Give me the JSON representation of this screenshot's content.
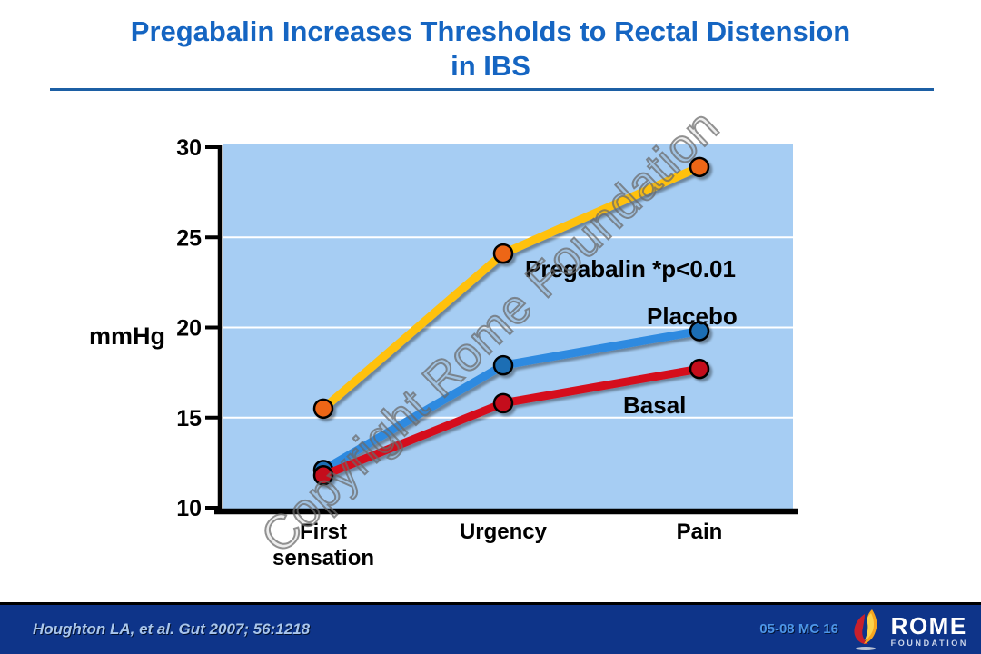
{
  "slide": {
    "title": "Pregabalin Increases Thresholds to Rectal Distension in IBS",
    "title_color": "#1565c2",
    "watermark": "Copyright Rome Foundation"
  },
  "chart_data": {
    "type": "line",
    "title": "",
    "xlabel": "",
    "ylabel": "mmHg",
    "ylim": [
      10,
      30
    ],
    "yticks": [
      30,
      25,
      20,
      15,
      10
    ],
    "gridlines": [
      25,
      20,
      15
    ],
    "grid": true,
    "legend_position": "inline-labels",
    "plot_bg_color": "#a6cdf3",
    "categories": [
      "First\nsensation",
      "Urgency",
      "Pain"
    ],
    "series": [
      {
        "name": "Pregabalin",
        "label": "Pregabalin *p<0.01",
        "values": [
          15.5,
          24.1,
          28.9
        ],
        "line_color": "#ffc10a",
        "marker_color": "#ed6616"
      },
      {
        "name": "Placebo",
        "label": "Placebo",
        "values": [
          12.1,
          17.9,
          19.8
        ],
        "line_color": "#2e8ae0",
        "marker_color": "#1f6eb4"
      },
      {
        "name": "Basal",
        "label": "Basal",
        "values": [
          11.8,
          15.8,
          17.7
        ],
        "line_color": "#d50e1e",
        "marker_color": "#c40c1a"
      }
    ]
  },
  "footer": {
    "citation": "Houghton LA, et al. Gut 2007; 56:1218",
    "slide_code": "05-08 MC 16",
    "bar_color": "#0e3489",
    "logo": {
      "name": "ROME",
      "subname": "FOUNDATION",
      "icon": "rome-flame-icon"
    }
  }
}
